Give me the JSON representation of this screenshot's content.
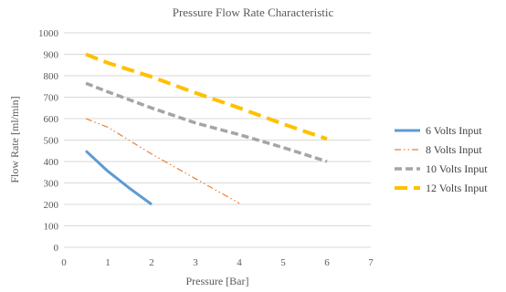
{
  "chart_data": {
    "type": "line",
    "title": "Pressure Flow Rate Characteristic",
    "xlabel": "Pressure [Bar]",
    "ylabel": "Flow Rate [ml/min]",
    "xlim": [
      0,
      7
    ],
    "ylim": [
      0,
      1000
    ],
    "xticks": [
      "0",
      "1",
      "2",
      "3",
      "4",
      "5",
      "6",
      "7"
    ],
    "yticks": [
      "0",
      "100",
      "200",
      "300",
      "400",
      "500",
      "600",
      "700",
      "800",
      "900",
      "1000"
    ],
    "grid": true,
    "legend_position": "right",
    "series": [
      {
        "name": "6 Volts Input",
        "color": "#5b9bd5",
        "dash": "solid",
        "x": [
          0.5,
          1.0,
          1.5,
          2.0
        ],
        "y": [
          450,
          355,
          275,
          200
        ]
      },
      {
        "name": "8 Volts Input",
        "color": "#ed7d31",
        "dash": "dash-dot-dot",
        "x": [
          0.5,
          1.0,
          2.0,
          3.0,
          4.0
        ],
        "y": [
          600,
          560,
          435,
          320,
          205
        ]
      },
      {
        "name": "10 Volts Input",
        "color": "#a5a5a5",
        "dash": "dash",
        "x": [
          0.5,
          1.0,
          2.0,
          3.0,
          4.0,
          5.0,
          6.0
        ],
        "y": [
          765,
          725,
          650,
          580,
          525,
          465,
          400
        ]
      },
      {
        "name": "12 Volts Input",
        "color": "#ffc000",
        "dash": "long-dash",
        "x": [
          0.5,
          1.0,
          2.0,
          3.0,
          4.0,
          5.0,
          6.0
        ],
        "y": [
          900,
          860,
          795,
          720,
          650,
          575,
          505
        ]
      }
    ]
  }
}
